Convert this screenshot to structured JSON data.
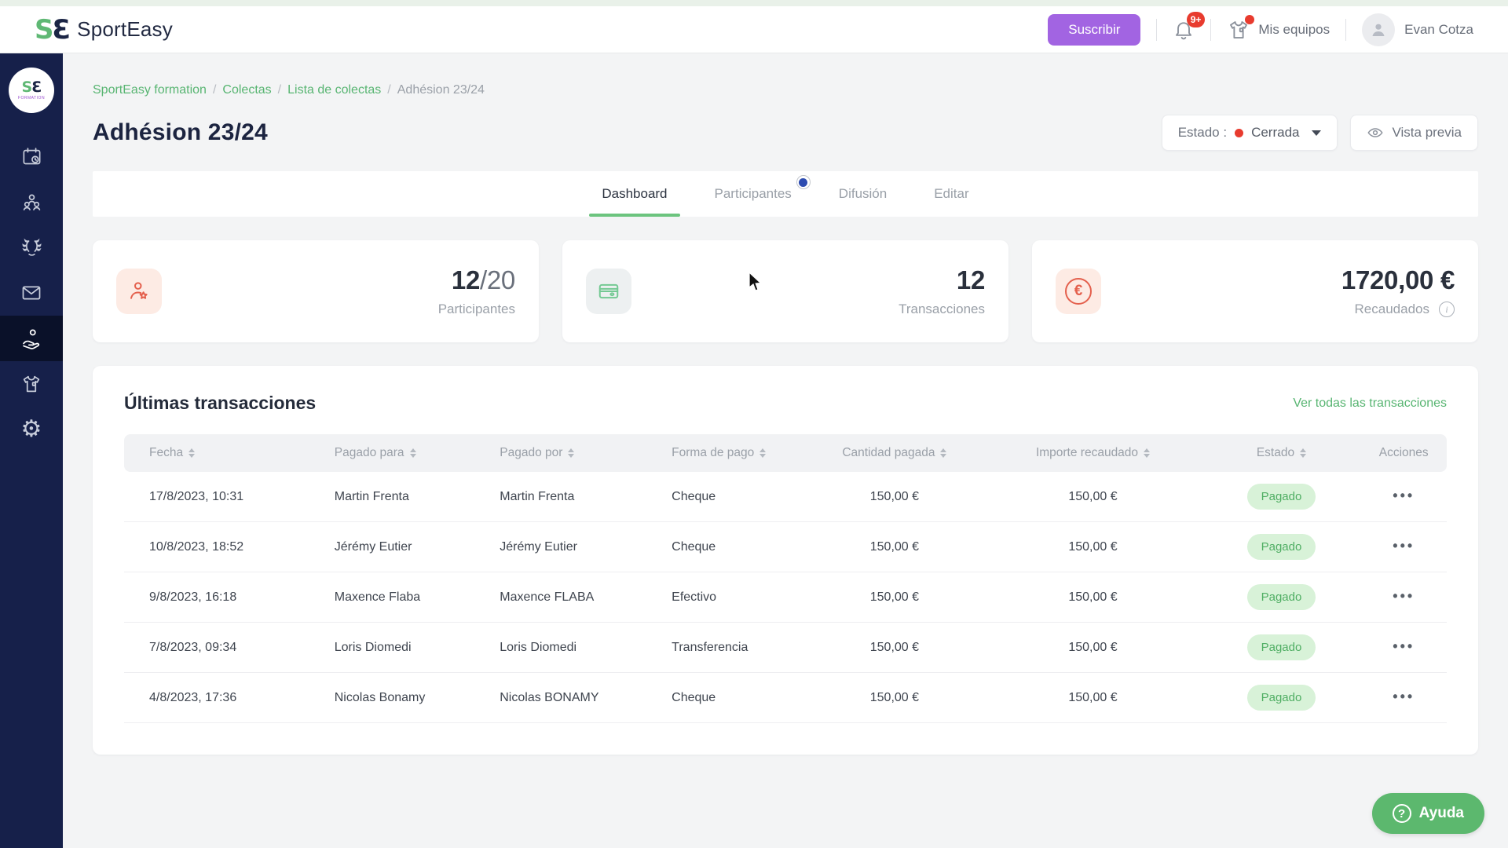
{
  "colors": {
    "accent_green": "#57b46b",
    "navy": "#16204a",
    "purple": "#a264e2",
    "alert_red": "#e83b2e",
    "paid_bg": "#d8f2d8",
    "paid_text": "#4fae63"
  },
  "header": {
    "logo_s": "S",
    "logo_e": "Ɛ",
    "logo_text": "SportEasy",
    "subscribe_label": "Suscribir",
    "notifications_badge": "9+",
    "my_teams_label": "Mis equipos",
    "user_name": "Evan Cotza"
  },
  "sidebar": {
    "team_mark_s": "S",
    "team_mark_e": "Ɛ",
    "team_sub": "FORMATION",
    "icons": [
      "calendar-clock",
      "members",
      "competitions-laurel",
      "messages",
      "fundraising",
      "equipment-jersey",
      "settings"
    ],
    "active_icon": "fundraising"
  },
  "breadcrumb": {
    "links": [
      "SportEasy formation",
      "Colectas",
      "Lista de colectas"
    ],
    "separator": "/",
    "current": "Adhésion 23/24"
  },
  "page": {
    "title": "Adhésion 23/24",
    "status_label": "Estado :",
    "status_value": "Cerrada",
    "preview_label": "Vista previa"
  },
  "tabs": [
    {
      "label": "Dashboard",
      "active": true
    },
    {
      "label": "Participantes",
      "active": false,
      "badge_dot": true
    },
    {
      "label": "Difusión",
      "active": false
    },
    {
      "label": "Editar",
      "active": false
    }
  ],
  "stats": [
    {
      "icon": "participant-star",
      "value": "12",
      "suffix": "/20",
      "label": "Participantes"
    },
    {
      "icon": "credit-card",
      "value": "12",
      "suffix": "",
      "label": "Transacciones"
    },
    {
      "icon": "euro",
      "value": "1720,00 €",
      "suffix": "",
      "label": "Recaudados",
      "info": true
    }
  ],
  "transactions": {
    "title": "Últimas transacciones",
    "view_all": "Ver todas las transacciones",
    "columns": [
      {
        "label": "Fecha",
        "sortable": true,
        "align": "left"
      },
      {
        "label": "Pagado para",
        "sortable": true,
        "align": "left"
      },
      {
        "label": "Pagado por",
        "sortable": true,
        "align": "left"
      },
      {
        "label": "Forma de pago",
        "sortable": true,
        "align": "left"
      },
      {
        "label": "Cantidad pagada",
        "sortable": true,
        "align": "center"
      },
      {
        "label": "Importe recaudado",
        "sortable": true,
        "align": "center"
      },
      {
        "label": "Estado",
        "sortable": true,
        "align": "center"
      },
      {
        "label": "Acciones",
        "sortable": false,
        "align": "center"
      }
    ],
    "actions_glyph": "•••",
    "rows": [
      {
        "fecha": "17/8/2023, 10:31",
        "pagado_para": "Martin Frenta",
        "pagado_por": "Martin Frenta",
        "forma": "Cheque",
        "cantidad": "150,00 €",
        "importe": "150,00 €",
        "estado": "Pagado"
      },
      {
        "fecha": "10/8/2023, 18:52",
        "pagado_para": "Jérémy Eutier",
        "pagado_por": "Jérémy Eutier",
        "forma": "Cheque",
        "cantidad": "150,00 €",
        "importe": "150,00 €",
        "estado": "Pagado"
      },
      {
        "fecha": "9/8/2023, 16:18",
        "pagado_para": "Maxence Flaba",
        "pagado_por": "Maxence FLABA",
        "forma": "Efectivo",
        "cantidad": "150,00 €",
        "importe": "150,00 €",
        "estado": "Pagado"
      },
      {
        "fecha": "7/8/2023, 09:34",
        "pagado_para": "Loris Diomedi",
        "pagado_por": "Loris Diomedi",
        "forma": "Transferencia",
        "cantidad": "150,00 €",
        "importe": "150,00 €",
        "estado": "Pagado"
      },
      {
        "fecha": "4/8/2023, 17:36",
        "pagado_para": "Nicolas Bonamy",
        "pagado_por": "Nicolas BONAMY",
        "forma": "Cheque",
        "cantidad": "150,00 €",
        "importe": "150,00 €",
        "estado": "Pagado"
      }
    ]
  },
  "help_button": {
    "label": "Ayuda"
  }
}
